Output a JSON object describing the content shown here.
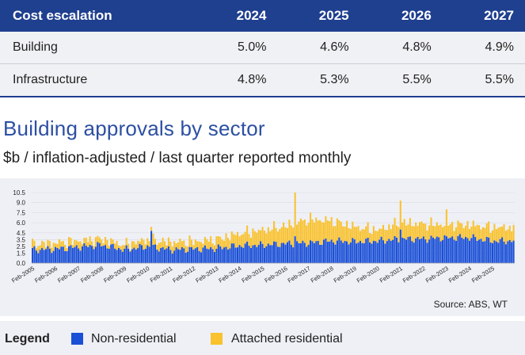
{
  "table": {
    "header": [
      "Cost escalation",
      "2024",
      "2025",
      "2026",
      "2027"
    ],
    "rows": [
      {
        "label": "Building",
        "v2024": "5.0%",
        "v2025": "4.6%",
        "v2026": "4.8%",
        "v2027": "4.9%"
      },
      {
        "label": "Infrastructure",
        "v2024": "4.8%",
        "v2025": "5.3%",
        "v2026": "5.5%",
        "v2027": "5.5%"
      }
    ]
  },
  "chart": {
    "title": "Building approvals by sector",
    "subtitle": "$b / inflation-adjusted / last quarter reported monthly",
    "source": "Source: ABS, WT"
  },
  "legend": {
    "title": "Legend",
    "items": [
      {
        "label": "Non-residential",
        "color": "#1a4fd6"
      },
      {
        "label": "Attached residential",
        "color": "#f9c22e"
      }
    ]
  },
  "chart_data": {
    "type": "bar",
    "stacked": true,
    "title": "Building approvals by sector",
    "subtitle": "$b / inflation-adjusted / last quarter reported monthly",
    "ylim": [
      0,
      10.5
    ],
    "yticks": [
      "0.0",
      "1.5",
      "2.5",
      "3.5",
      "4.5",
      "6.0",
      "7.5",
      "9.0",
      "10.5"
    ],
    "ytick_values": [
      0,
      1.5,
      2.5,
      3.5,
      4.5,
      6.0,
      7.5,
      9.0,
      10.5
    ],
    "x_labels": [
      "Feb-2005",
      "Feb-2006",
      "Feb-2007",
      "Feb-2008",
      "Feb-2009",
      "Feb-2010",
      "Feb-2011",
      "Feb-2012",
      "Feb-2013",
      "Feb-2014",
      "Feb-2015",
      "Feb-2016",
      "Feb-2017",
      "Feb-2018",
      "Feb-2019",
      "Feb-2020",
      "Feb-2021",
      "Feb-2022",
      "Feb-2023",
      "Feb-2024",
      "Feb-2025"
    ],
    "annual_anchors": {
      "non_residential": [
        2.0,
        2.1,
        2.4,
        2.7,
        2.0,
        2.5,
        2.0,
        2.1,
        2.2,
        2.6,
        2.7,
        2.9,
        3.0,
        3.3,
        3.2,
        3.3,
        3.6,
        3.6,
        3.8,
        3.8,
        3.3
      ],
      "attached_residential": [
        0.8,
        0.9,
        0.9,
        0.9,
        0.7,
        1.0,
        1.1,
        1.1,
        1.3,
        1.8,
        2.2,
        2.6,
        3.5,
        3.0,
        2.2,
        1.6,
        2.4,
        2.2,
        1.9,
        1.9,
        2.0
      ]
    },
    "peaks": [
      {
        "label": "Feb-2010 spike",
        "non_residential": 4.8,
        "attached_residential": 0.6
      },
      {
        "label": "mid-2016 peak",
        "non_residential": 4.0,
        "attached_residential": 6.6
      },
      {
        "label": "early-2021 peak",
        "non_residential": 5.0,
        "attached_residential": 4.3
      },
      {
        "label": "early-2023 peak",
        "non_residential": 4.0,
        "attached_residential": 4.0
      }
    ],
    "series": [
      {
        "name": "Non-residential",
        "color": "#1a4fd6"
      },
      {
        "name": "Attached residential",
        "color": "#f9c22e"
      }
    ]
  }
}
